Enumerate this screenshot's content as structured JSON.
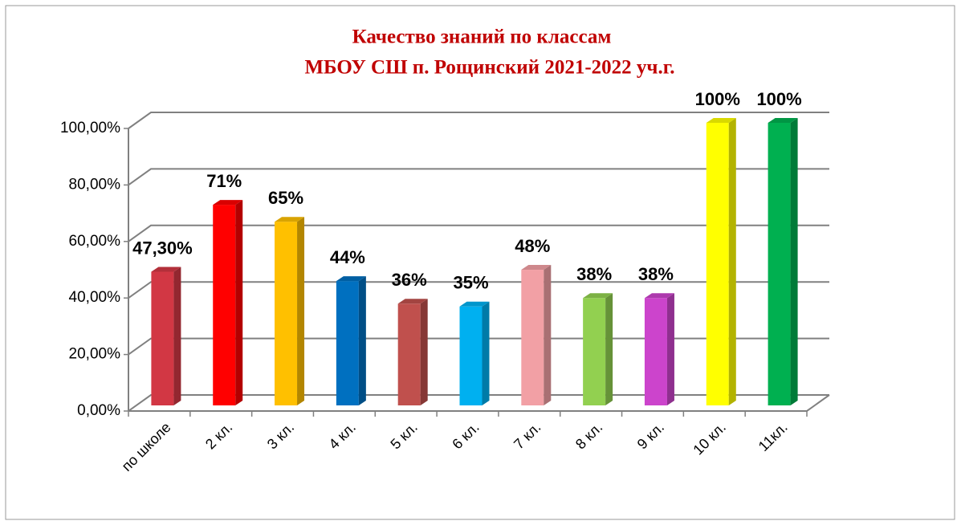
{
  "chart_data": {
    "type": "bar3d",
    "title": "Качество знаний по классам",
    "subtitle": "МБОУ СШ п. Рощинский 2021-2022 уч.г.",
    "categories": [
      "по школе",
      "2 кл.",
      "3 кл.",
      "4 кл.",
      "5 кл.",
      "6 кл.",
      "7 кл.",
      "8 кл.",
      "9 кл.",
      "10 кл.",
      "11кл."
    ],
    "values": [
      47.3,
      71,
      65,
      44,
      36,
      35,
      48,
      38,
      38,
      100,
      100
    ],
    "value_labels": [
      "47,30%",
      "71%",
      "65%",
      "44%",
      "36%",
      "35%",
      "48%",
      "38%",
      "38%",
      "100%",
      "100%"
    ],
    "colors": [
      "#d23744",
      "#ff0000",
      "#ffc000",
      "#0070c0",
      "#c0504d",
      "#00b0f0",
      "#f2a0a5",
      "#92d050",
      "#cc44cc",
      "#ffff00",
      "#00b050"
    ],
    "ylim": [
      0,
      100
    ],
    "yticks": [
      {
        "value": 0,
        "label": "0,00%"
      },
      {
        "value": 20,
        "label": "20,00%"
      },
      {
        "value": 40,
        "label": "40,00%"
      },
      {
        "value": 60,
        "label": "60,00%"
      },
      {
        "value": 80,
        "label": "80,00%"
      },
      {
        "value": 100,
        "label": "100,00%"
      }
    ],
    "grid": true
  }
}
